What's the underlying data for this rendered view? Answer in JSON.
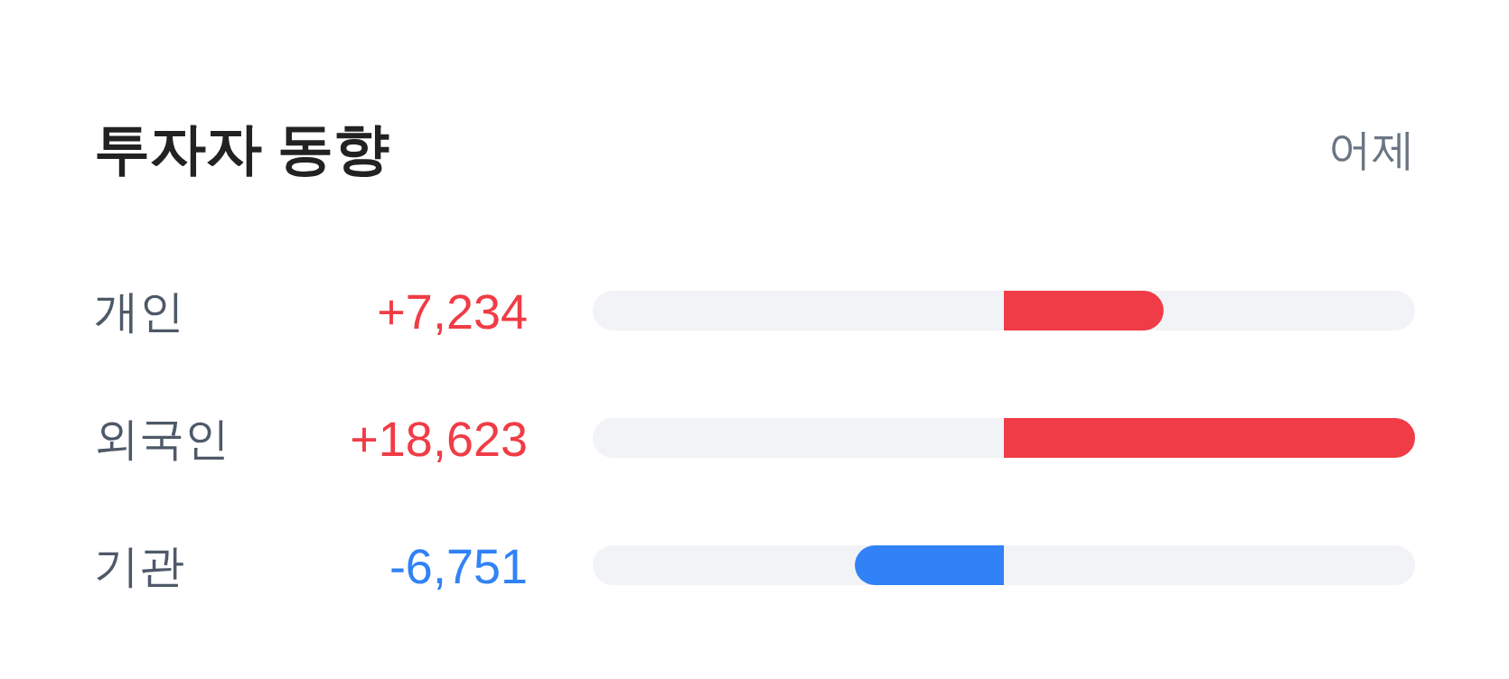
{
  "chart_data": {
    "type": "bar",
    "orientation": "horizontal",
    "title": "투자자 동향",
    "subtitle": "어제",
    "categories": [
      "개인",
      "외국인",
      "기관"
    ],
    "values": [
      7234,
      18623,
      -6751
    ],
    "colors": [
      "#f03c46",
      "#f03c46",
      "#3182f6"
    ],
    "value_labels": [
      "+7,234",
      "+18,623",
      "-6,751"
    ]
  }
}
